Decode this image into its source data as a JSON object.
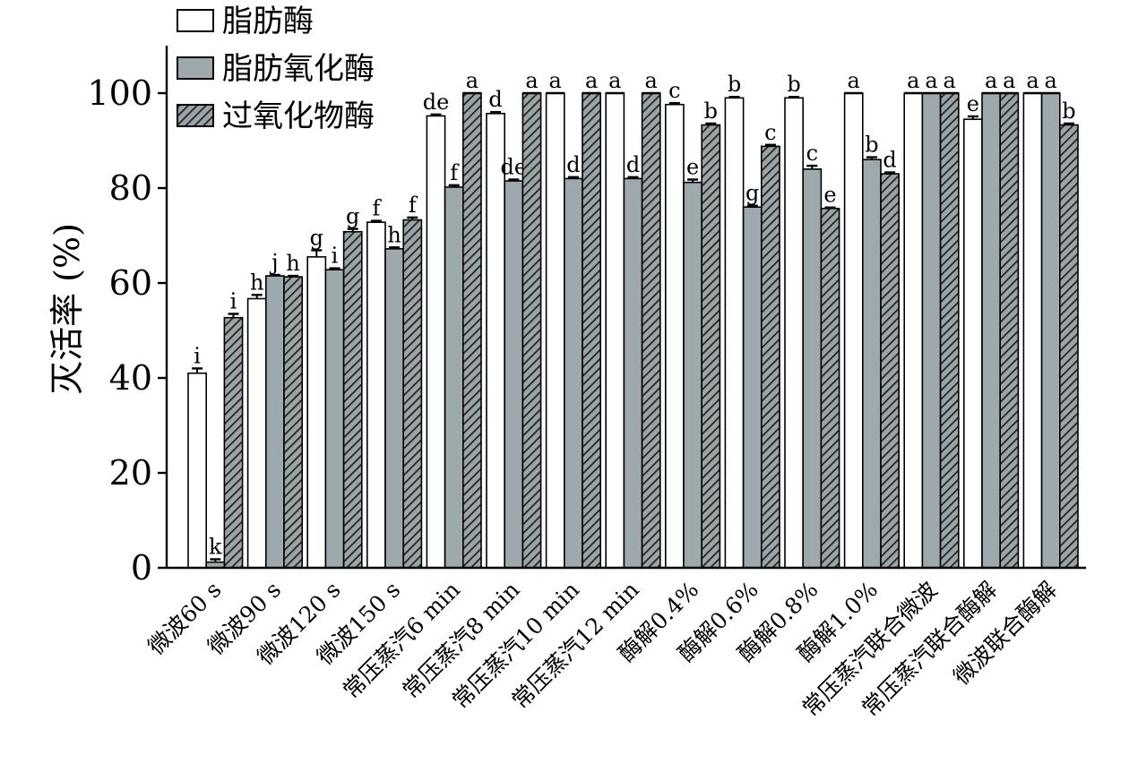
{
  "chart_data": {
    "type": "bar",
    "ylabel": "灭活率 (%)",
    "ylim": [
      0,
      110
    ],
    "yticks": [
      0,
      20,
      40,
      60,
      80,
      100
    ],
    "legend_position": "top-left",
    "categories": [
      "微波60 s",
      "微波90 s",
      "微波120 s",
      "微波150 s",
      "常压蒸汽6 min",
      "常压蒸汽8 min",
      "常压蒸汽10 min",
      "常压蒸汽12 min",
      "酶解0.4%",
      "酶解0.6%",
      "酶解0.8%",
      "酶解1.0%",
      "常压蒸汽联合微波",
      "常压蒸汽联合酶解",
      "微波联合酶解"
    ],
    "series": [
      {
        "name": "脂肪酶",
        "pattern": "white",
        "values": [
          41,
          56.7,
          65.5,
          72.8,
          95.2,
          95.7,
          100,
          100,
          97.6,
          99,
          99,
          100,
          100,
          94.5,
          100
        ],
        "errors": [
          1,
          0.8,
          1.4,
          0.3,
          0.3,
          0.3,
          0,
          0,
          0.3,
          0.2,
          0.2,
          0,
          0,
          0.6,
          0
        ],
        "letters": [
          "i",
          "h",
          "g",
          "f",
          "de",
          "d",
          "a",
          "a",
          "c",
          "b",
          "b",
          "a",
          "a",
          "e",
          "a"
        ]
      },
      {
        "name": "脂肪氧化酶",
        "pattern": "gray",
        "values": [
          1.2,
          61.5,
          62.8,
          67.2,
          80.2,
          81.5,
          82,
          82,
          81.2,
          76,
          84,
          86,
          100,
          100,
          100
        ],
        "errors": [
          0.6,
          0.2,
          0.3,
          0.3,
          0.4,
          0.3,
          0.3,
          0.3,
          0.6,
          0.3,
          0.7,
          0.5,
          0,
          0,
          0
        ],
        "letters": [
          "k",
          "j",
          "i",
          "h",
          "f",
          "de",
          "d",
          "d",
          "e",
          "g",
          "c",
          "b",
          "a",
          "a",
          "a"
        ]
      },
      {
        "name": "过氧化物酶",
        "pattern": "hatch",
        "values": [
          52.7,
          61.3,
          70.8,
          73.3,
          100,
          100,
          100,
          100,
          93.3,
          88.8,
          75.7,
          83,
          100,
          100,
          93.3
        ],
        "errors": [
          0.8,
          0.2,
          0.6,
          0.5,
          0,
          0,
          0,
          0,
          0.3,
          0.3,
          0.2,
          0.3,
          0,
          0,
          0.3
        ],
        "letters": [
          "i",
          "h",
          "g",
          "f",
          "a",
          "a",
          "a",
          "a",
          "b",
          "c",
          "e",
          "d",
          "a",
          "a",
          "b"
        ]
      }
    ],
    "colors": {
      "white_bar": "#ffffff",
      "gray_bar": "#9ea9ad",
      "hatch_bg": "#9aa3a6",
      "hatch_line": "#1f1f1f",
      "stroke": "#000000"
    }
  }
}
